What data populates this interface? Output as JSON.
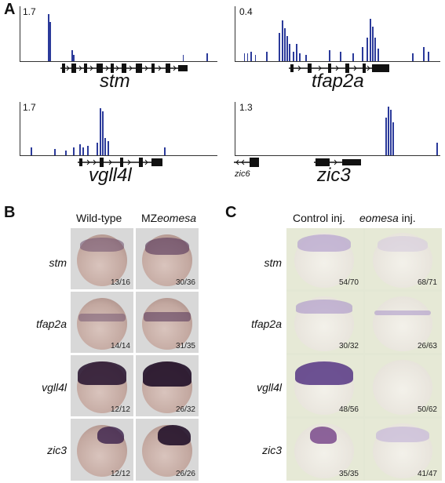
{
  "panel_a": {
    "letter": "A",
    "tracks": [
      {
        "gene": "stm",
        "ymax": "1.7",
        "extra_gene": ""
      },
      {
        "gene": "tfap2a",
        "ymax": "0.4",
        "extra_gene": ""
      },
      {
        "gene": "vgll4l",
        "ymax": "1.7",
        "extra_gene": ""
      },
      {
        "gene": "zic3",
        "ymax": "1.3",
        "extra_gene": "zic6"
      }
    ]
  },
  "panel_b": {
    "letter": "B",
    "col1": "Wild-type",
    "col2_prefix": "MZ",
    "col2_italic": "eomesa",
    "rows": [
      {
        "gene": "stm",
        "counts": [
          "13/16",
          "30/36"
        ]
      },
      {
        "gene": "tfap2a",
        "counts": [
          "14/14",
          "31/35"
        ]
      },
      {
        "gene": "vgll4l",
        "counts": [
          "12/12",
          "26/32"
        ]
      },
      {
        "gene": "zic3",
        "counts": [
          "12/12",
          "26/26"
        ]
      }
    ]
  },
  "panel_c": {
    "letter": "C",
    "col1": "Control inj.",
    "col2_italic": "eomesa",
    "col2_suffix": " inj.",
    "rows": [
      {
        "gene": "stm",
        "counts": [
          "54/70",
          "68/71"
        ]
      },
      {
        "gene": "tfap2a",
        "counts": [
          "30/32",
          "26/63"
        ]
      },
      {
        "gene": "vgll4l",
        "counts": [
          "48/56",
          "50/62"
        ]
      },
      {
        "gene": "zic3",
        "counts": [
          "35/35",
          "41/47"
        ]
      }
    ]
  },
  "colors": {
    "signal": "#2b3a9a",
    "gene_model": "#111111",
    "embryo_b_bg": "#d9d9d9",
    "embryo_c_bg": "#e7ebd8",
    "stain": "#3a1f4a"
  }
}
